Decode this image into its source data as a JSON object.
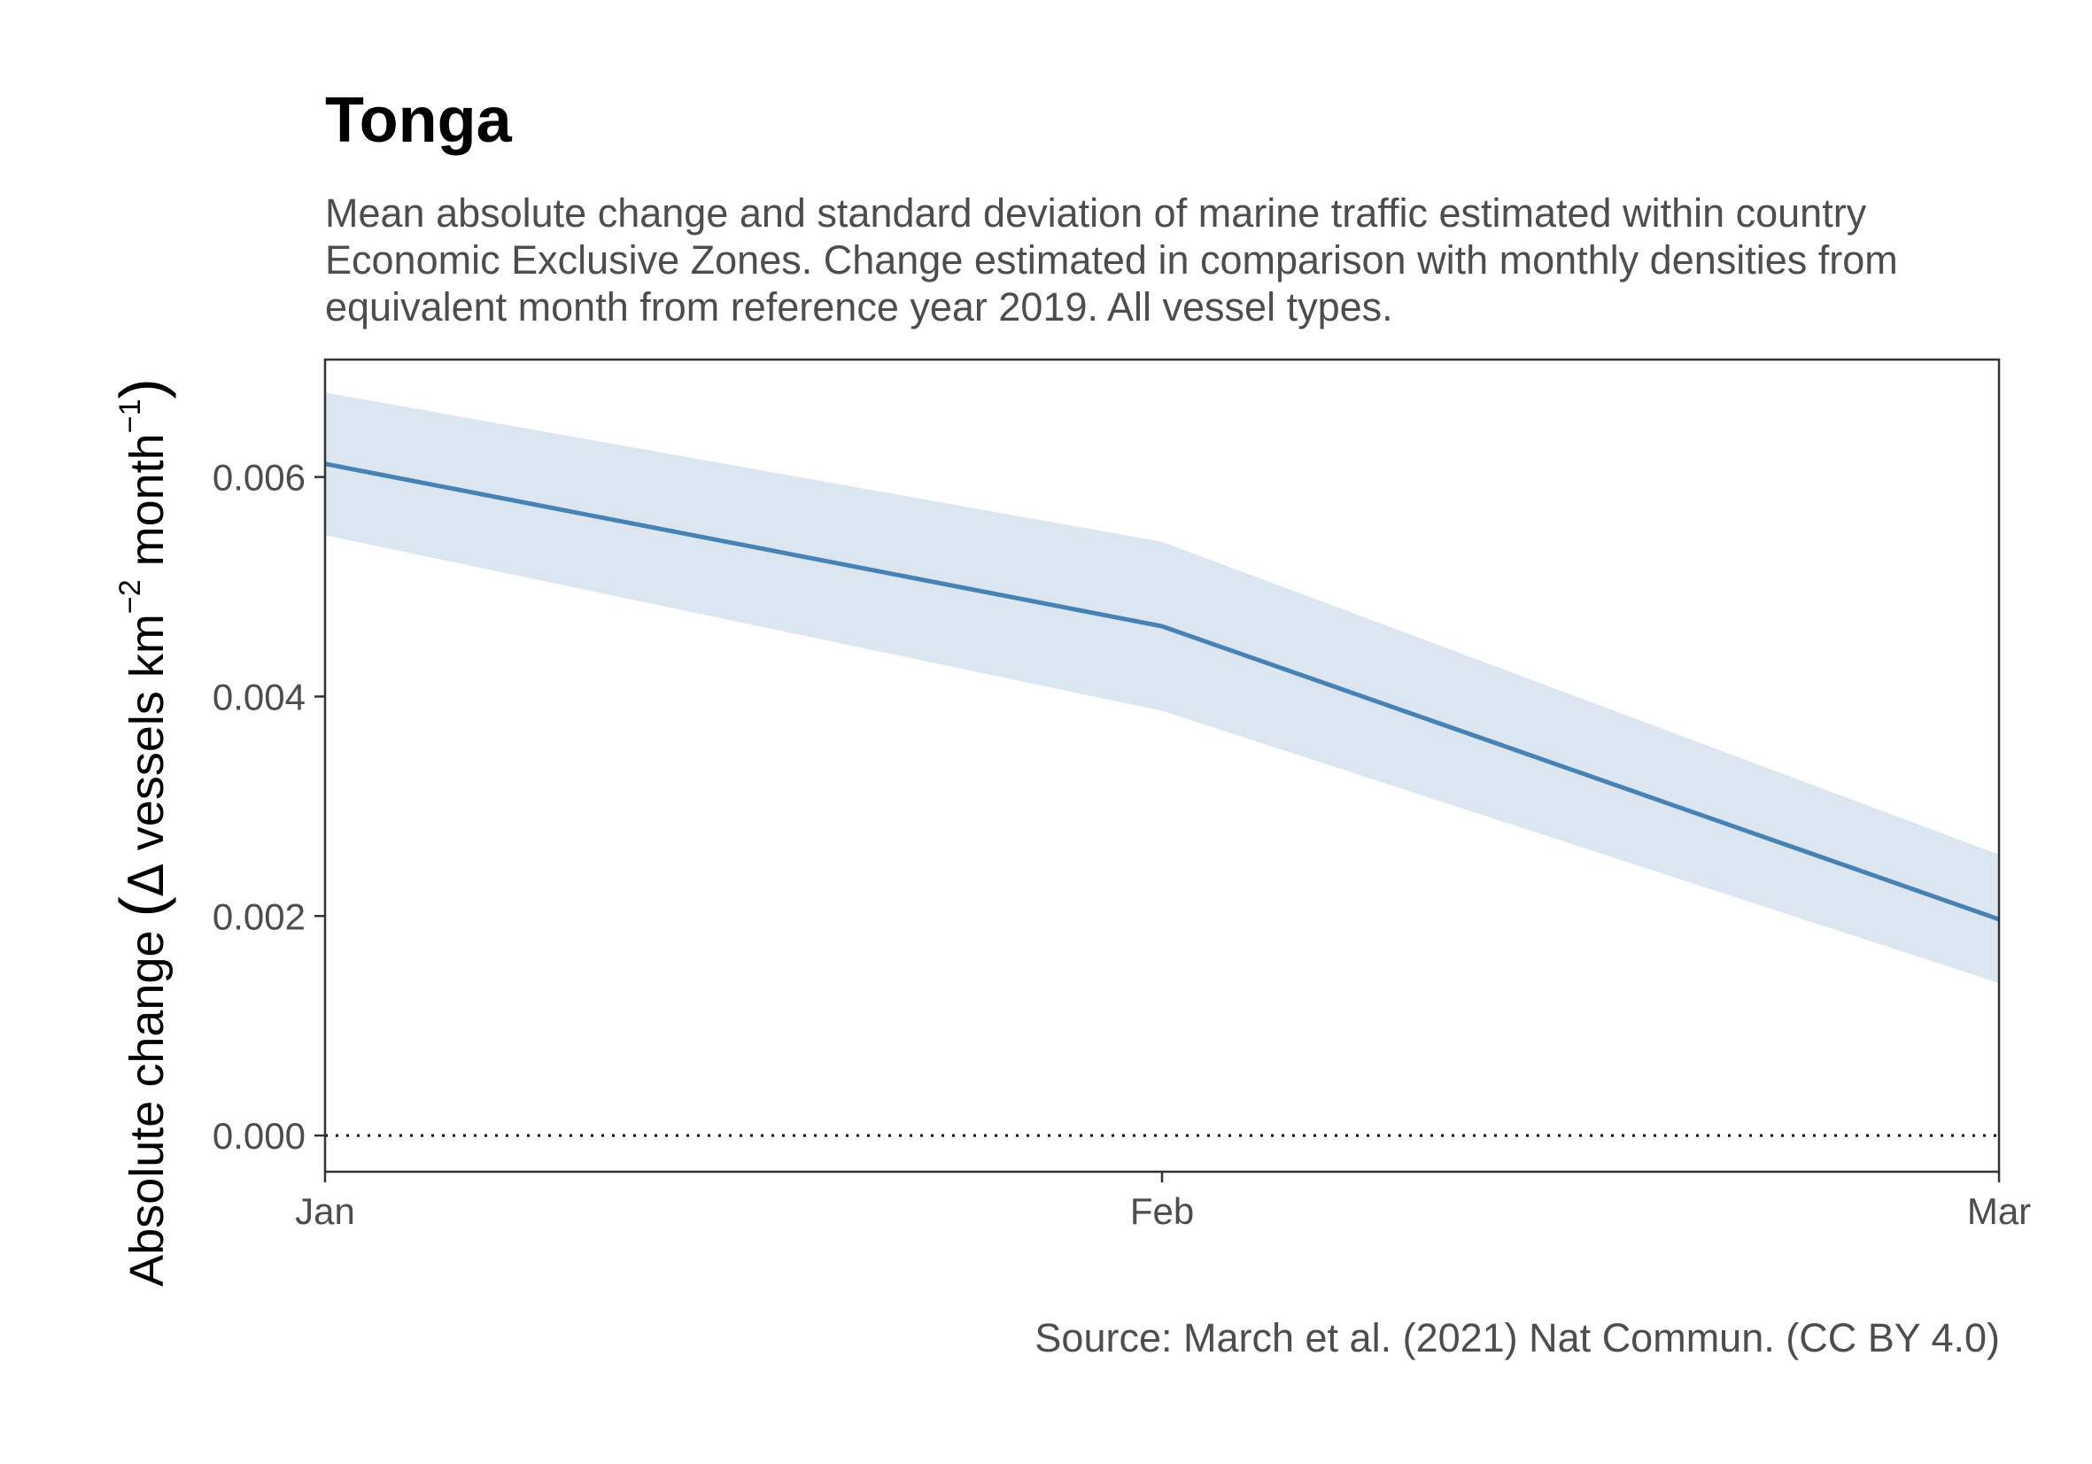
{
  "title": "Tonga",
  "subtitle": "Mean absolute change and standard deviation of marine traffic estimated within country Economic Exclusive Zones. Change estimated in comparison with monthly densities from equivalent month from reference year 2019. All vessel types.",
  "caption": "Source: March et al. (2021) Nat Commun. (CC BY 4.0)",
  "ylabel": {
    "prefix": "Absolute change",
    "delta": "Δ",
    "unit_a": "vessels km",
    "exp_a": "−2",
    "unit_b": "month",
    "exp_b": "−1"
  },
  "colors": {
    "line": "#4682b4",
    "ribbon": "#dce6f0",
    "axis": "#333333",
    "reference_line": "#000000"
  },
  "chart_data": {
    "type": "line",
    "categories": [
      "Jan",
      "Feb",
      "Mar"
    ],
    "series": [
      {
        "values": [
          0.00612,
          0.00464,
          0.00197
        ],
        "lower": [
          0.00547,
          0.00387,
          0.00139
        ],
        "upper": [
          0.00677,
          0.00541,
          0.00256
        ]
      }
    ],
    "ylim": [
      -0.00033,
      0.00707
    ],
    "yticks": [
      0.0,
      0.002,
      0.004,
      0.006
    ],
    "ytick_labels": [
      "0.000",
      "0.002",
      "0.004",
      "0.006"
    ],
    "reference_line": {
      "y": 0,
      "style": "dotted"
    },
    "grid": false,
    "legend": "none"
  }
}
